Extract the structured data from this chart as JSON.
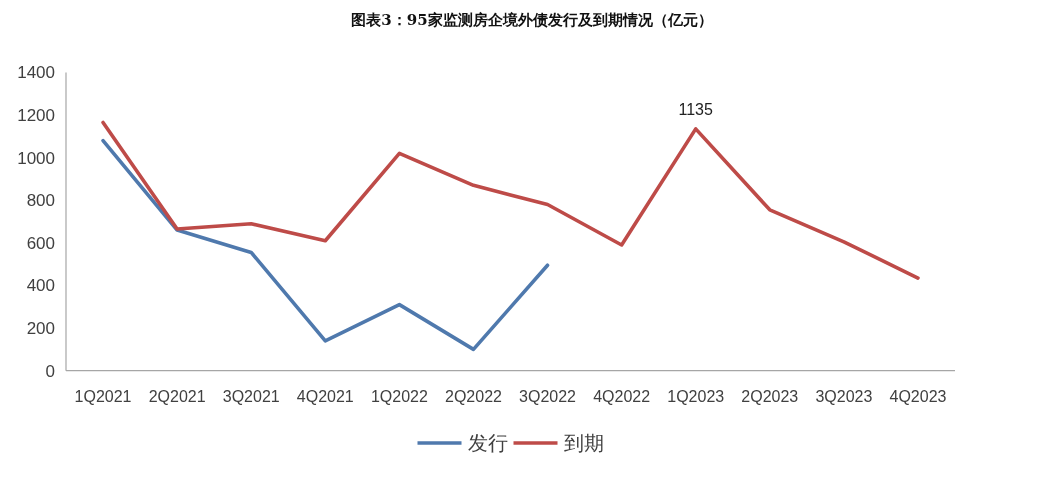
{
  "chart_data": {
    "type": "line",
    "title": "图表3：95家监测房企境外债发行及到期情况（亿元）",
    "categories": [
      "1Q2021",
      "2Q2021",
      "3Q2021",
      "4Q2021",
      "1Q2022",
      "2Q2022",
      "3Q2022",
      "4Q2022",
      "1Q2023",
      "2Q2023",
      "3Q2023",
      "4Q2023"
    ],
    "series": [
      {
        "name": "发行",
        "color": "#4f79ad",
        "values": [
          1080,
          660,
          555,
          140,
          310,
          100,
          495,
          null,
          null,
          null,
          null,
          null
        ]
      },
      {
        "name": "到期",
        "color": "#be4b48",
        "values": [
          1165,
          665,
          690,
          610,
          1020,
          870,
          780,
          590,
          1135,
          755,
          605,
          435
        ],
        "value_labels": [
          null,
          null,
          null,
          null,
          null,
          null,
          null,
          null,
          "1135",
          null,
          null,
          null
        ]
      }
    ],
    "ylim": [
      0,
      1400
    ],
    "yticks": [
      0,
      200,
      400,
      600,
      800,
      1000,
      1200,
      1400
    ],
    "grid": false,
    "legend": "bottom",
    "marker": "none",
    "line_style": "solid"
  }
}
